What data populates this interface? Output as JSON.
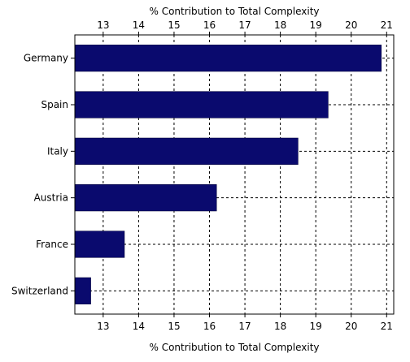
{
  "chart_data": {
    "type": "bar",
    "orientation": "horizontal",
    "categories": [
      "Germany",
      "Spain",
      "Italy",
      "Austria",
      "France",
      "Switzerland"
    ],
    "values": [
      20.85,
      19.35,
      18.5,
      16.2,
      13.6,
      12.65
    ],
    "xlabel_top": "% Contribution to Total Complexity",
    "xlabel_bottom": "% Contribution to Total Complexity",
    "xlim": [
      12.2,
      21.2
    ],
    "xticks": [
      13,
      14,
      15,
      16,
      17,
      18,
      19,
      20,
      21
    ],
    "grid": true,
    "bar_color": "#0a0a6e"
  }
}
